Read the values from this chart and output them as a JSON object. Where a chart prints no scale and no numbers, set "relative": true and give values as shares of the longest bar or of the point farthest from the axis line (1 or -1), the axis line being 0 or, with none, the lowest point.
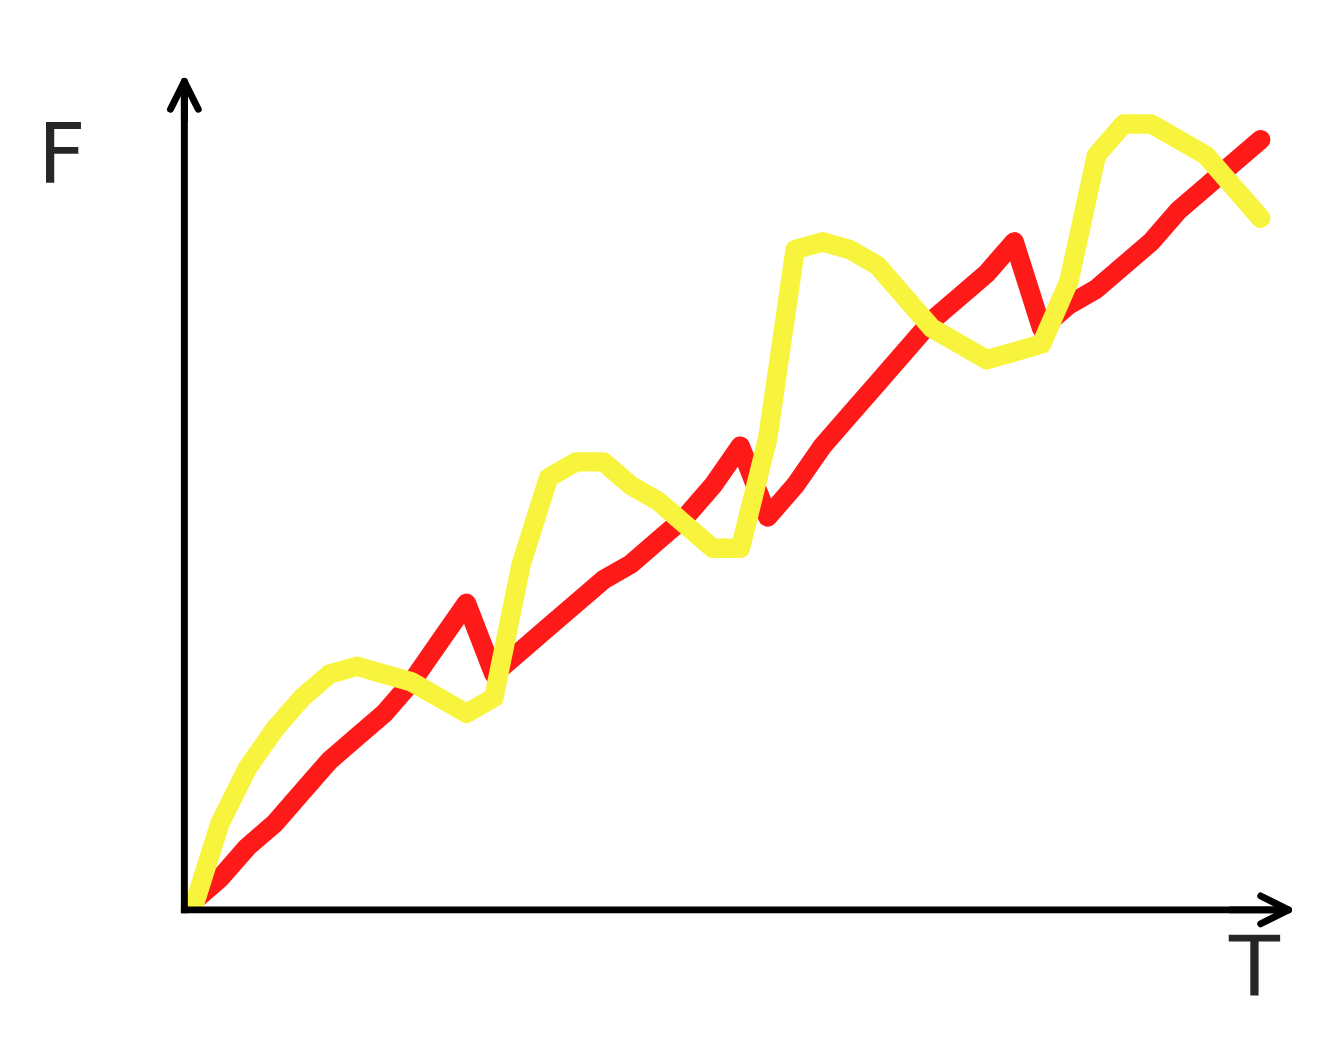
{
  "chart_data": {
    "type": "line",
    "xlabel": "T",
    "ylabel": "F",
    "relative": true,
    "marker": "none",
    "line_style": "solid",
    "categories": [
      null,
      null,
      null,
      null,
      null,
      null,
      null,
      null,
      null,
      null,
      null,
      null,
      null,
      null,
      null,
      null,
      null,
      null,
      null,
      null,
      null,
      null,
      null,
      null,
      null,
      null,
      null,
      null,
      null,
      null,
      null,
      null,
      null,
      null,
      null,
      null,
      null,
      null,
      null,
      null
    ],
    "series": [
      {
        "color": "#ff1a1a",
        "values": [
          0.01,
          0.04,
          0.08,
          0.11,
          0.15,
          0.19,
          0.22,
          0.25,
          0.29,
          0.34,
          0.39,
          0.3,
          0.33,
          0.36,
          0.39,
          0.42,
          0.44,
          0.47,
          0.5,
          0.54,
          0.59,
          0.5,
          0.54,
          0.59,
          0.63,
          0.67,
          0.71,
          0.75,
          0.78,
          0.81,
          0.85,
          0.74,
          0.77,
          0.79,
          0.82,
          0.85,
          0.89,
          0.92,
          0.95,
          0.98
        ]
      },
      {
        "color": "#f8f33c",
        "values": [
          0,
          0.11,
          0.18,
          0.23,
          0.27,
          0.3,
          0.31,
          0.3,
          0.29,
          0.27,
          0.25,
          0.27,
          0.44,
          0.55,
          0.57,
          0.57,
          0.54,
          0.52,
          0.49,
          0.46,
          0.46,
          0.6,
          0.84,
          0.85,
          0.84,
          0.82,
          0.78,
          0.74,
          0.72,
          0.7,
          0.71,
          0.72,
          0.8,
          0.96,
          1.0,
          1.0,
          0.98,
          0.96,
          0.92,
          0.88
        ]
      }
    ]
  }
}
